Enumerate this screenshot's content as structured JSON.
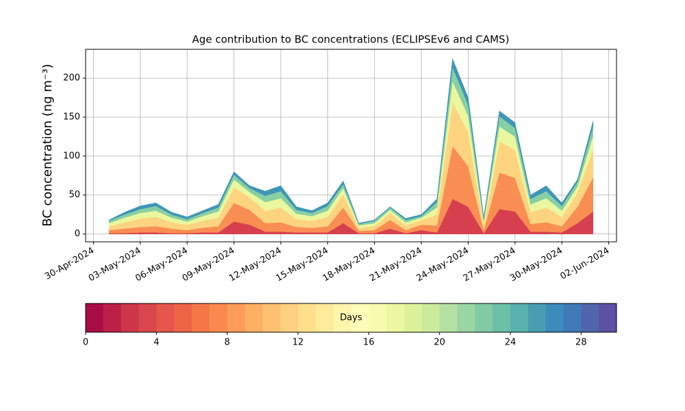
{
  "chart_data": {
    "type": "stacked_area",
    "title": "Age contribution to BC concentrations (ECLIPSEv6 and CAMS)",
    "ylabel": "BC concentration (ng m⁻³)",
    "x": [
      "2024-05-01",
      "2024-05-02",
      "2024-05-03",
      "2024-05-04",
      "2024-05-05",
      "2024-05-06",
      "2024-05-07",
      "2024-05-08",
      "2024-05-09",
      "2024-05-10",
      "2024-05-11",
      "2024-05-12",
      "2024-05-13",
      "2024-05-14",
      "2024-05-15",
      "2024-05-16",
      "2024-05-17",
      "2024-05-18",
      "2024-05-19",
      "2024-05-20",
      "2024-05-21",
      "2024-05-22",
      "2024-05-23",
      "2024-05-24",
      "2024-05-25",
      "2024-05-26",
      "2024-05-27",
      "2024-05-28",
      "2024-05-29",
      "2024-05-30",
      "2024-05-31",
      "2024-06-01"
    ],
    "series": [
      {
        "color": "#d6404e",
        "values": [
          1,
          1,
          2,
          2,
          1,
          1,
          2,
          2,
          16,
          12,
          3,
          3,
          2,
          2,
          2,
          14,
          1,
          1,
          7,
          1,
          5,
          2,
          45,
          35,
          1,
          32,
          29,
          3,
          3,
          2,
          14,
          29
        ]
      },
      {
        "color": "#f98e52",
        "values": [
          4,
          6,
          7,
          8,
          6,
          4,
          6,
          8,
          24,
          19,
          11,
          12,
          7,
          6,
          8,
          20,
          3,
          4,
          11,
          4,
          7,
          9,
          68,
          52,
          4,
          47,
          43,
          10,
          12,
          8,
          21,
          44
        ]
      },
      {
        "color": "#fed481",
        "values": [
          5,
          8,
          11,
          12,
          8,
          7,
          9,
          11,
          20,
          16,
          16,
          19,
          10,
          9,
          12,
          17,
          4,
          5,
          9,
          6,
          6,
          14,
          56,
          44,
          7,
          40,
          36,
          15,
          19,
          12,
          18,
          36
        ]
      },
      {
        "color": "#eaf79e",
        "values": [
          4,
          6,
          7,
          8,
          6,
          4,
          6,
          8,
          10,
          7,
          11,
          12,
          7,
          6,
          8,
          8,
          3,
          4,
          4,
          4,
          3,
          9,
          27,
          21,
          4,
          19,
          17,
          10,
          12,
          8,
          8,
          17
        ]
      },
      {
        "color": "#88cfa4",
        "values": [
          3,
          4,
          5,
          6,
          4,
          3,
          4,
          5,
          6,
          5,
          8,
          9,
          5,
          4,
          6,
          5,
          2,
          3,
          3,
          3,
          2,
          7,
          18,
          14,
          3,
          13,
          11,
          7,
          9,
          6,
          6,
          12
        ]
      },
      {
        "color": "#3f96b7",
        "values": [
          1,
          3,
          4,
          4,
          3,
          3,
          3,
          4,
          4,
          3,
          6,
          7,
          4,
          3,
          4,
          4,
          1,
          1,
          1,
          2,
          2,
          4,
          11,
          9,
          3,
          7,
          7,
          5,
          7,
          4,
          3,
          7
        ]
      }
    ],
    "xlim": [
      "2024-04-29T12:00Z",
      "2024-06-02T12:00Z"
    ],
    "xticks": [
      {
        "value": "2024-04-30",
        "label": "30-Apr-2024"
      },
      {
        "value": "2024-05-03",
        "label": "03-May-2024"
      },
      {
        "value": "2024-05-06",
        "label": "06-May-2024"
      },
      {
        "value": "2024-05-09",
        "label": "09-May-2024"
      },
      {
        "value": "2024-05-12",
        "label": "12-May-2024"
      },
      {
        "value": "2024-05-15",
        "label": "15-May-2024"
      },
      {
        "value": "2024-05-18",
        "label": "18-May-2024"
      },
      {
        "value": "2024-05-21",
        "label": "21-May-2024"
      },
      {
        "value": "2024-05-24",
        "label": "24-May-2024"
      },
      {
        "value": "2024-05-27",
        "label": "27-May-2024"
      },
      {
        "value": "2024-05-30",
        "label": "30-May-2024"
      },
      {
        "value": "2024-06-02",
        "label": "02-Jun-2024"
      }
    ],
    "ylim": [
      -10,
      237
    ],
    "yticks": [
      0,
      50,
      100,
      150,
      200
    ],
    "grid": true,
    "colorbar": {
      "label": "Days",
      "lim": [
        0,
        30
      ],
      "ticks": [
        0,
        4,
        8,
        12,
        16,
        20,
        24,
        28
      ],
      "colors": [
        "#a90d45",
        "#bd2047",
        "#cd3649",
        "#da464d",
        "#e4574a",
        "#ed6546",
        "#f57748",
        "#f88a50",
        "#fb9c59",
        "#fdaf62",
        "#fdc171",
        "#fed07f",
        "#fee08c",
        "#feea9b",
        "#fff4ab",
        "#fffbb8",
        "#f6fbb0",
        "#ebf7a2",
        "#ddf19b",
        "#cbea9c",
        "#b4e0a2",
        "#9ad5a4",
        "#80cba5",
        "#6bc1a5",
        "#59b1ab",
        "#489db3",
        "#3b8bbb",
        "#3f7ab6",
        "#4e65ac",
        "#5d51a2"
      ]
    }
  }
}
